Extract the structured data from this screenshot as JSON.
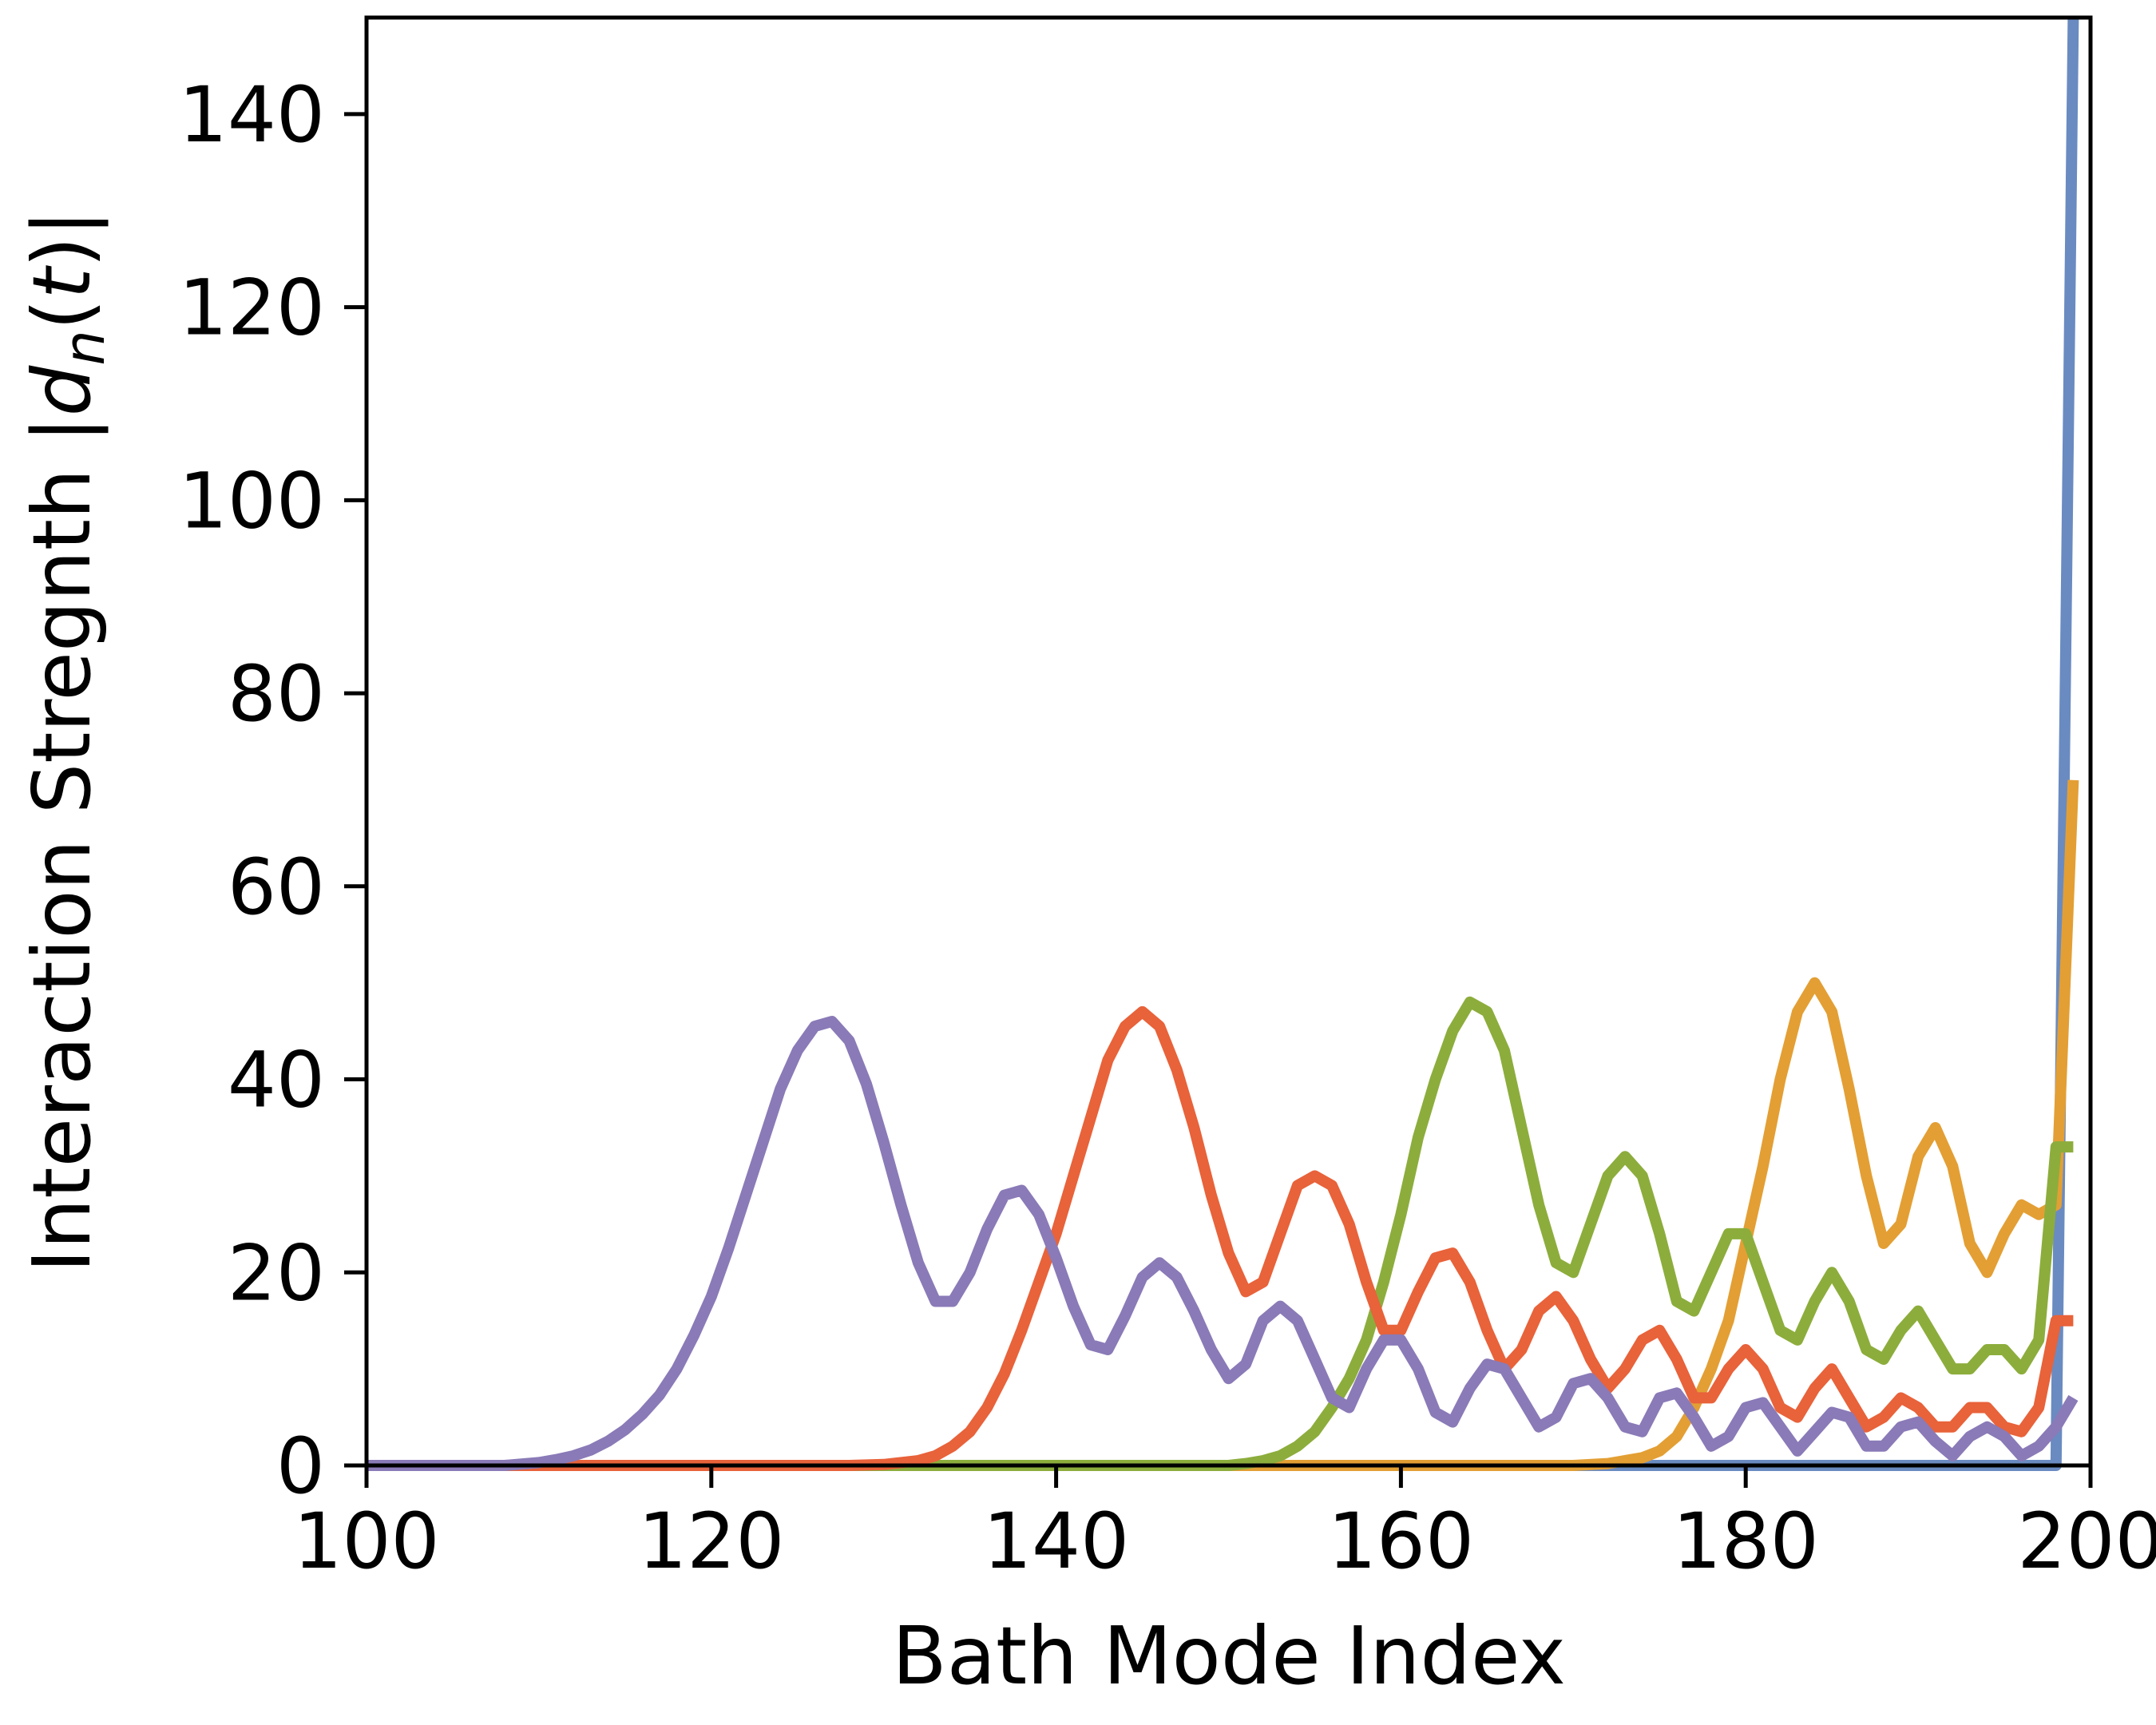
{
  "chart_data": {
    "type": "line",
    "xlabel": "Bath Mode Index",
    "ylabel_prefix": "Interaction Stregnth |",
    "ylabel_var": "d",
    "ylabel_sub": "n",
    "ylabel_paren_open": "(",
    "ylabel_t": "t",
    "ylabel_suffix": ")|",
    "xlim": [
      100,
      200
    ],
    "ylim": [
      0,
      150
    ],
    "xticks": [
      100,
      120,
      140,
      160,
      180,
      200
    ],
    "yticks": [
      0,
      20,
      40,
      60,
      80,
      100,
      120,
      140
    ],
    "grid": false,
    "legend": "none",
    "series": [
      {
        "color": "#6a8bc1",
        "x": [
          100,
          197,
          198,
          199
        ],
        "y": [
          0,
          0,
          0,
          150
        ]
      },
      {
        "color": "#e39f34",
        "x": [
          100,
          170,
          172,
          174,
          175,
          176,
          177,
          178,
          179,
          180,
          181,
          182,
          183,
          184,
          185,
          186,
          187,
          188,
          189,
          190,
          191,
          192,
          193,
          194,
          195,
          196,
          197,
          198,
          199
        ],
        "y": [
          0,
          0,
          0.2,
          0.8,
          1.5,
          3,
          6,
          10,
          15,
          23,
          31,
          40,
          47,
          50,
          47,
          39,
          30,
          23,
          25,
          32,
          35,
          31,
          23,
          20,
          24,
          27,
          26,
          27,
          71
        ]
      },
      {
        "color": "#8cad3c",
        "x": [
          100,
          150,
          151,
          152,
          153,
          154,
          155,
          156,
          157,
          158,
          159,
          160,
          161,
          162,
          163,
          164,
          165,
          166,
          167,
          168,
          169,
          170,
          171,
          172,
          173,
          174,
          175,
          176,
          177,
          178,
          179,
          180,
          181,
          182,
          183,
          184,
          185,
          186,
          187,
          188,
          189,
          190,
          191,
          192,
          193,
          194,
          195,
          196,
          197,
          198,
          199
        ],
        "y": [
          0,
          0,
          0.2,
          0.5,
          1,
          2,
          3.5,
          6,
          9,
          13,
          19,
          26,
          34,
          40,
          45,
          48,
          47,
          43,
          35,
          27,
          21,
          20,
          25,
          30,
          32,
          30,
          24,
          17,
          16,
          20,
          24,
          24,
          19,
          14,
          13,
          17,
          20,
          17,
          12,
          11,
          14,
          16,
          13,
          10,
          10,
          12,
          12,
          10,
          13,
          33,
          33
        ]
      },
      {
        "color": "#e8623a",
        "x": [
          100,
          128,
          130,
          132,
          133,
          134,
          135,
          136,
          137,
          138,
          139,
          140,
          141,
          142,
          143,
          144,
          145,
          146,
          147,
          148,
          149,
          150,
          151,
          152,
          153,
          154,
          155,
          156,
          157,
          158,
          159,
          160,
          161,
          162,
          163,
          164,
          165,
          166,
          167,
          168,
          169,
          170,
          171,
          172,
          173,
          174,
          175,
          176,
          177,
          178,
          179,
          180,
          181,
          182,
          183,
          184,
          185,
          186,
          187,
          188,
          189,
          190,
          191,
          192,
          193,
          194,
          195,
          196,
          197,
          198,
          199
        ],
        "y": [
          0,
          0,
          0.1,
          0.5,
          1,
          2,
          3.5,
          6,
          9.5,
          14,
          19,
          24,
          30,
          36,
          42,
          45.5,
          47,
          45.5,
          41,
          35,
          28,
          22,
          18,
          19,
          24,
          29,
          30,
          29,
          25,
          19,
          14,
          14,
          18,
          21.5,
          22,
          19,
          14,
          10,
          12,
          16,
          17.5,
          15,
          11,
          8,
          10,
          13,
          14,
          11,
          7,
          7,
          10,
          12,
          10,
          6,
          5,
          8,
          10,
          7,
          4,
          5,
          7,
          6,
          4,
          4,
          6,
          6,
          4,
          3.5,
          6,
          15,
          15
        ]
      },
      {
        "color": "#8a7ab7",
        "x": [
          100,
          108,
          110,
          111,
          112,
          113,
          114,
          115,
          116,
          117,
          118,
          119,
          120,
          121,
          122,
          123,
          124,
          125,
          126,
          127,
          128,
          129,
          130,
          131,
          132,
          133,
          134,
          135,
          136,
          137,
          138,
          139,
          140,
          141,
          142,
          143,
          144,
          145,
          146,
          147,
          148,
          149,
          150,
          151,
          152,
          153,
          154,
          155,
          156,
          157,
          158,
          159,
          160,
          161,
          162,
          163,
          164,
          165,
          166,
          167,
          168,
          169,
          170,
          171,
          172,
          173,
          174,
          175,
          176,
          177,
          178,
          179,
          180,
          181,
          182,
          183,
          184,
          185,
          186,
          187,
          188,
          189,
          190,
          191,
          192,
          193,
          194,
          195,
          196,
          197,
          198,
          199
        ],
        "y": [
          0,
          0,
          0.3,
          0.6,
          1,
          1.6,
          2.5,
          3.7,
          5.3,
          7.3,
          10,
          13.5,
          17.5,
          22.5,
          28,
          33.5,
          39,
          43,
          45.5,
          46,
          44,
          39.5,
          33.5,
          27,
          21,
          17,
          17,
          20,
          24.5,
          28,
          28.5,
          26,
          21.5,
          16.5,
          12.5,
          12,
          15.5,
          19.5,
          21,
          19.5,
          16,
          12,
          9,
          10.5,
          15,
          16.5,
          15,
          11,
          7,
          6,
          10,
          13,
          13,
          10,
          5.5,
          4.5,
          8,
          10.5,
          10,
          7,
          4,
          5,
          8.5,
          9,
          7,
          4,
          3.5,
          7,
          7.5,
          5,
          2,
          3,
          6,
          6.5,
          4,
          1.5,
          3.5,
          5.5,
          5,
          2,
          2,
          4,
          4.5,
          2.5,
          1,
          3,
          4,
          3,
          1,
          2,
          4,
          7
        ]
      }
    ]
  }
}
